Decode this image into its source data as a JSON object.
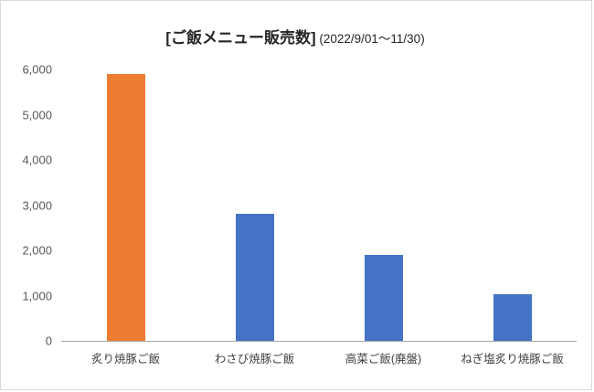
{
  "title": {
    "main": "[ご飯メニュー販売数]",
    "suffix": " (2022/9/01〜11/30)"
  },
  "chart_data": {
    "type": "bar",
    "title": "[ご飯メニュー販売数] (2022/9/01〜11/30)",
    "categories": [
      "炙り焼豚ご飯",
      "わさび焼豚ご飯",
      "高菜ご飯(廃盤)",
      "ねぎ塩炙り焼豚ご飯"
    ],
    "values": [
      5900,
      2800,
      1900,
      1030
    ],
    "bar_colors": [
      "#ED7D31",
      "#4472C4",
      "#4472C4",
      "#4472C4"
    ],
    "xlabel": "",
    "ylabel": "",
    "ylim": [
      0,
      6000
    ],
    "ytick_step": 1000,
    "ytick_labels": [
      "0",
      "1,000",
      "2,000",
      "3,000",
      "4,000",
      "5,000",
      "6,000"
    ],
    "grid": false,
    "legend": "none"
  },
  "colors": {
    "axis_line": "#a6a6a6",
    "tick_text": "#595959",
    "category_text": "#404040",
    "border": "#d9d9d9",
    "background": "#ffffff",
    "highlight_bar": "#ED7D31",
    "default_bar": "#4472C4"
  }
}
